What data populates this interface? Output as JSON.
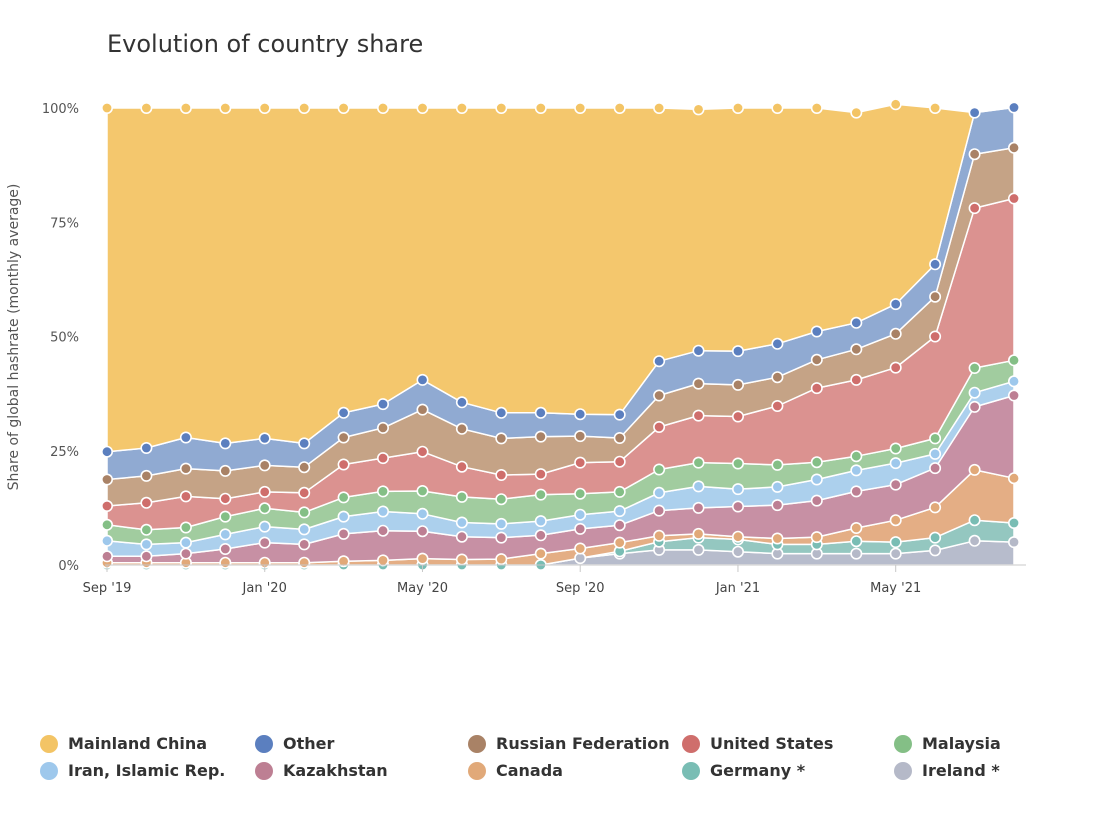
{
  "chart_data": {
    "type": "area",
    "stacked": true,
    "title": "Evolution of country share",
    "ylabel": "Share of global hashrate (monthly average)",
    "xlabel": "",
    "ylim": [
      0,
      100
    ],
    "yticks": [
      "0%",
      "25%",
      "50%",
      "75%",
      "100%"
    ],
    "x": [
      "Sep '19",
      "Oct '19",
      "Nov '19",
      "Dec '19",
      "Jan '20",
      "Feb '20",
      "Mar '20",
      "Apr '20",
      "May '20",
      "Jun '20",
      "Jul '20",
      "Aug '20",
      "Sep '20",
      "Oct '20",
      "Nov '20",
      "Dec '20",
      "Jan '21",
      "Feb '21",
      "Mar '21",
      "Apr '21",
      "May '21",
      "Jun '21",
      "Jul '21",
      "Aug '21"
    ],
    "xtick_labels": [
      {
        "index": 0,
        "label": "Sep '19"
      },
      {
        "index": 4,
        "label": "Jan '20"
      },
      {
        "index": 8,
        "label": "May '20"
      },
      {
        "index": 12,
        "label": "Sep '20"
      },
      {
        "index": 16,
        "label": "Jan '21"
      },
      {
        "index": 20,
        "label": "May '21"
      }
    ],
    "grid": false,
    "legend_position": "bottom",
    "series": [
      {
        "name": "Ireland *",
        "color": "#b3b8c9",
        "values": [
          0.0,
          0.0,
          0.0,
          0.0,
          0.0,
          0.0,
          0.0,
          0.0,
          0.0,
          0.0,
          0.0,
          0.0,
          1.5,
          2.5,
          3.3,
          3.3,
          2.9,
          2.5,
          2.5,
          2.5,
          2.5,
          3.2,
          5.3,
          5.0
        ]
      },
      {
        "name": "Germany *",
        "color": "#8ec4bd",
        "values": [
          0.0,
          0.0,
          0.0,
          0.0,
          0.0,
          0.0,
          0.0,
          0.0,
          0.0,
          0.0,
          0.0,
          0.0,
          0.0,
          0.5,
          1.8,
          2.7,
          2.7,
          2.0,
          2.0,
          2.7,
          2.5,
          2.8,
          4.5,
          4.2
        ]
      },
      {
        "name": "Canada",
        "color": "#e3aa7e",
        "values": [
          0.5,
          0.5,
          0.5,
          0.5,
          0.5,
          0.5,
          0.8,
          1.0,
          1.4,
          1.2,
          1.3,
          2.5,
          2.1,
          1.9,
          1.3,
          0.8,
          0.6,
          1.3,
          1.6,
          2.9,
          4.8,
          6.6,
          11.0,
          9.8
        ]
      },
      {
        "name": "Kazakhstan",
        "color": "#c48a9f",
        "values": [
          1.4,
          1.4,
          2.0,
          3.0,
          4.4,
          4.0,
          6.0,
          6.5,
          6.0,
          5.0,
          4.7,
          4.0,
          4.3,
          3.8,
          5.5,
          5.7,
          6.6,
          7.3,
          8.0,
          8.0,
          7.8,
          8.6,
          13.8,
          18.1
        ]
      },
      {
        "name": "Iran, Islamic Rep.",
        "color": "#a8cdec",
        "values": [
          3.4,
          2.6,
          2.4,
          3.2,
          3.5,
          3.3,
          3.8,
          4.2,
          3.8,
          3.1,
          3.0,
          3.1,
          3.1,
          3.1,
          3.9,
          4.7,
          3.8,
          4.0,
          4.6,
          4.6,
          4.7,
          3.1,
          3.1,
          3.1
        ]
      },
      {
        "name": "Malaysia",
        "color": "#9cc99a",
        "values": [
          3.5,
          3.2,
          3.3,
          3.9,
          4.0,
          3.7,
          4.2,
          4.4,
          5.0,
          5.6,
          5.4,
          5.8,
          4.6,
          4.2,
          5.1,
          5.2,
          5.6,
          4.8,
          3.8,
          3.1,
          3.2,
          3.4,
          5.4,
          4.6
        ]
      },
      {
        "name": "United States",
        "color": "#d98c8a",
        "values": [
          4.1,
          5.9,
          6.8,
          3.9,
          3.6,
          4.3,
          7.2,
          7.3,
          8.6,
          6.6,
          5.3,
          4.5,
          6.8,
          6.6,
          9.3,
          10.3,
          10.3,
          12.9,
          16.2,
          16.7,
          17.7,
          22.3,
          35.0,
          35.4
        ]
      },
      {
        "name": "Russian Federation",
        "color": "#c29e7f",
        "values": [
          5.8,
          5.9,
          6.1,
          6.1,
          5.8,
          5.6,
          5.9,
          6.6,
          9.2,
          8.3,
          8.0,
          8.2,
          5.8,
          5.2,
          6.9,
          7.0,
          6.9,
          6.3,
          6.2,
          6.7,
          7.4,
          8.7,
          11.8,
          11.1
        ]
      },
      {
        "name": "Other",
        "color": "#8aa5d0",
        "values": [
          6.1,
          6.1,
          6.8,
          6.0,
          5.9,
          5.2,
          5.4,
          5.2,
          6.5,
          5.8,
          5.6,
          5.2,
          4.8,
          5.1,
          7.5,
          7.2,
          7.4,
          7.3,
          6.2,
          5.8,
          6.5,
          7.1,
          9.1,
          8.8
        ]
      },
      {
        "name": "Mainland China",
        "color": "#f3c465",
        "values": [
          75.2,
          74.4,
          72.1,
          73.4,
          72.3,
          73.4,
          66.7,
          64.8,
          59.5,
          64.4,
          66.7,
          66.7,
          67.0,
          67.1,
          55.4,
          52.8,
          53.2,
          51.6,
          48.9,
          46.0,
          43.7,
          34.2,
          0.0,
          0.0
        ]
      }
    ]
  },
  "legend": [
    {
      "label": "Mainland China",
      "color": "#f3c465"
    },
    {
      "label": "Other",
      "color": "#5b7fbf"
    },
    {
      "label": "Russian Federation",
      "color": "#a98266"
    },
    {
      "label": "United States",
      "color": "#cf6e6c"
    },
    {
      "label": "Malaysia",
      "color": "#84bf86"
    },
    {
      "label": "Iran, Islamic Rep.",
      "color": "#9ec8ec"
    },
    {
      "label": "Kazakhstan",
      "color": "#bd7f93"
    },
    {
      "label": "Canada",
      "color": "#e1a979"
    },
    {
      "label": "Germany *",
      "color": "#79bdb4"
    },
    {
      "label": "Ireland *",
      "color": "#b5b9c8"
    }
  ]
}
